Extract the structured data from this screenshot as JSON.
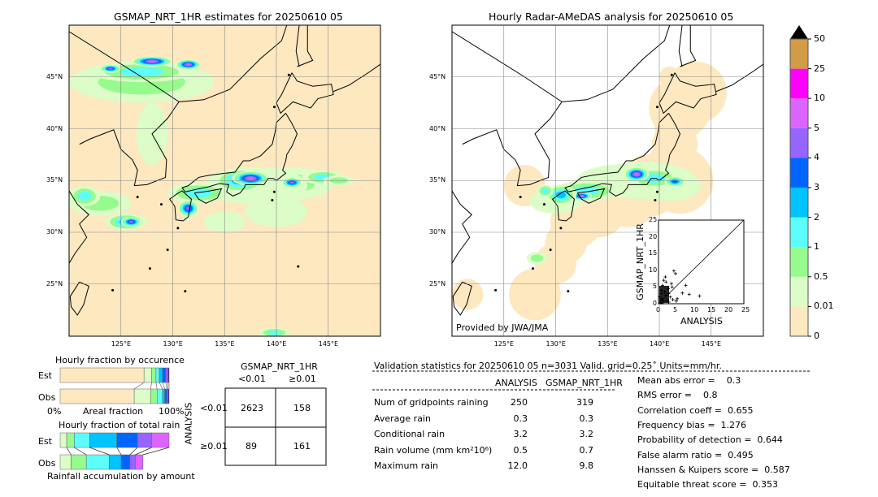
{
  "left_map": {
    "title": "GSMAP_NRT_1HR estimates for 20250610 05"
  },
  "right_map": {
    "title": "Hourly Radar-AMeDAS analysis for 20250610 05",
    "credit": "Provided by JWA/JMA"
  },
  "lat_ticks": [
    "45°N",
    "40°N",
    "35°N",
    "30°N",
    "25°N"
  ],
  "lat_values": [
    45,
    40,
    35,
    30,
    25
  ],
  "lon_ticks": [
    "125°E",
    "130°E",
    "135°E",
    "140°E",
    "145°E"
  ],
  "lon_values": [
    125,
    130,
    135,
    140,
    145
  ],
  "colorbar": {
    "labels": [
      "0",
      "0.01",
      "0.5",
      "1",
      "2",
      "3",
      "4",
      "5",
      "10",
      "25",
      "50"
    ],
    "colors": [
      "#fde8c0",
      "#dcfcc8",
      "#96fa8c",
      "#5cfcfc",
      "#00c3ff",
      "#0064ff",
      "#9664ff",
      "#dc64ff",
      "#ff00ff",
      "#d29b46"
    ],
    "extend_color": "#000000"
  },
  "occurrence": {
    "title": "Hourly fraction by occurence",
    "est_label": "Est",
    "obs_label": "Obs",
    "x0": "0%",
    "xlabel": "Areal fraction",
    "x1": "100%",
    "est": [
      0.77,
      0.07,
      0.04,
      0.03,
      0.03,
      0.03,
      0.02,
      0.01
    ],
    "obs": [
      0.68,
      0.15,
      0.06,
      0.05,
      0.02,
      0.02,
      0.01,
      0.01
    ]
  },
  "total_rain": {
    "title": "Hourly fraction of total rain",
    "est_label": "Est",
    "obs_label": "Obs",
    "xlabel": "Rainfall accumulation by amount",
    "est": [
      0.06,
      0.07,
      0.14,
      0.25,
      0.19,
      0.13,
      0.16
    ],
    "obs": [
      0.1,
      0.14,
      0.21,
      0.11,
      0.08,
      0.05,
      0.07
    ]
  },
  "contingency": {
    "title": "GSMAP_NRT_1HR",
    "col_labels": [
      "<0.01",
      "≥0.01"
    ],
    "row_title": "ANALYSIS",
    "row_labels": [
      "<0.01",
      "≥0.01"
    ],
    "cells": [
      [
        "2623",
        "158"
      ],
      [
        "89",
        "161"
      ]
    ]
  },
  "stats": {
    "header": "Validation statistics for 20250610 05  n=3031 Valid. grid=0.25˚ Units=mm/hr.",
    "col_headers": [
      "ANALYSIS",
      "GSMAP_NRT_1HR"
    ],
    "rows": [
      {
        "label": "Num of gridpoints raining",
        "a": "250",
        "g": "319"
      },
      {
        "label": "Average rain",
        "a": "0.3",
        "g": "0.3"
      },
      {
        "label": "Conditional rain",
        "a": "3.2",
        "g": "3.2"
      },
      {
        "label": "Rain volume (mm km²10⁶)",
        "a": "0.5",
        "g": "0.7"
      },
      {
        "label": "Maximum rain",
        "a": "12.0",
        "g": "9.8"
      }
    ],
    "scores": [
      "Mean abs error =    0.3",
      "RMS error =    0.8",
      "Correlation coeff =  0.655",
      "Frequency bias =  1.276",
      "Probability of detection =  0.644",
      "False alarm ratio =  0.495",
      "Hanssen & Kuipers score =  0.587",
      "Equitable threat score =  0.353"
    ]
  },
  "chart_data": {
    "type": "scatter",
    "xlabel": "ANALYSIS",
    "ylabel": "GSMAP_NRT_1HR",
    "xlim": [
      0,
      25
    ],
    "ylim": [
      0,
      25
    ],
    "ticks": [
      "0",
      "5",
      "10",
      "15",
      "20",
      "25"
    ],
    "points": [
      [
        0.5,
        0.3
      ],
      [
        1,
        1.5
      ],
      [
        1.5,
        0.8
      ],
      [
        2,
        2.5
      ],
      [
        0.8,
        4
      ],
      [
        1.2,
        5.5
      ],
      [
        2.5,
        1
      ],
      [
        3,
        3
      ],
      [
        3.5,
        2
      ],
      [
        4,
        5
      ],
      [
        4.5,
        9.8
      ],
      [
        5,
        9
      ],
      [
        2,
        8
      ],
      [
        1.5,
        7
      ],
      [
        5.5,
        1.5
      ],
      [
        7,
        3.2
      ],
      [
        8,
        5.5
      ],
      [
        9,
        2.8
      ],
      [
        12,
        2.3
      ],
      [
        0.3,
        2
      ],
      [
        1.8,
        3.5
      ],
      [
        2.8,
        4.5
      ],
      [
        3.8,
        6
      ],
      [
        0.6,
        1
      ],
      [
        1,
        0.2
      ],
      [
        4.2,
        1.2
      ],
      [
        5.2,
        0.8
      ],
      [
        3,
        0.5
      ],
      [
        2.2,
        6.5
      ],
      [
        0.9,
        3
      ]
    ]
  }
}
